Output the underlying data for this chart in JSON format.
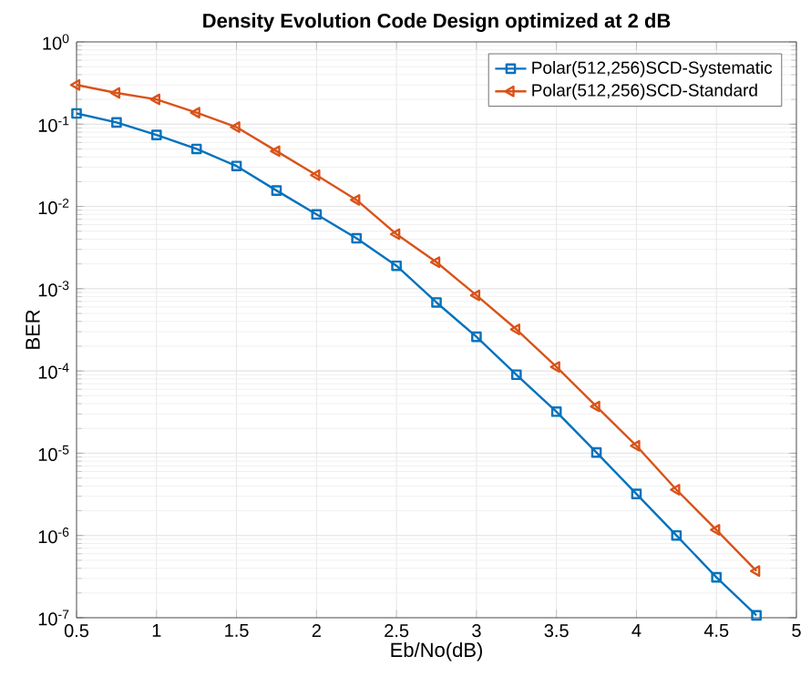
{
  "chart_data": {
    "type": "line",
    "title": "Density Evolution Code Design optimized at 2 dB",
    "xlabel": "Eb/No(dB)",
    "ylabel": "BER",
    "x": [
      0.5,
      0.75,
      1,
      1.25,
      1.5,
      1.75,
      2,
      2.25,
      2.5,
      2.75,
      3,
      3.25,
      3.5,
      3.75,
      4,
      4.25,
      4.5,
      4.75
    ],
    "series": [
      {
        "name": "Polar(512,256)SCD-Systematic",
        "color": "#0072bd",
        "marker": "square",
        "values": [
          0.135,
          0.105,
          0.074,
          0.05,
          0.031,
          0.0156,
          0.008,
          0.0041,
          0.0019,
          0.00068,
          0.00026,
          9e-05,
          3.2e-05,
          1.02e-05,
          3.2e-06,
          1e-06,
          3.1e-07,
          1.07e-07
        ]
      },
      {
        "name": "Polar(512,256)SCD-Standard",
        "color": "#d95319",
        "marker": "triangle",
        "values": [
          0.3,
          0.24,
          0.2,
          0.138,
          0.092,
          0.047,
          0.024,
          0.012,
          0.0046,
          0.0021,
          0.00083,
          0.00032,
          0.000112,
          3.7e-05,
          1.23e-05,
          3.6e-06,
          1.17e-06,
          3.7e-07
        ]
      }
    ],
    "xlim": [
      0.5,
      5
    ],
    "ylim": [
      1e-07,
      1
    ],
    "xticks": [
      0.5,
      1,
      1.5,
      2,
      2.5,
      3,
      3.5,
      4,
      4.5,
      5
    ],
    "yticks": [
      {
        "value": 1e-07,
        "label": "10$^{-7}$"
      },
      {
        "value": 1e-06,
        "label": "10$^{-6}$"
      },
      {
        "value": 1e-05,
        "label": "10$^{-5}$"
      },
      {
        "value": 0.0001,
        "label": "10$^{-4}$"
      },
      {
        "value": 0.001,
        "label": "10$^{-3}$"
      },
      {
        "value": 0.01,
        "label": "10$^{-2}$"
      },
      {
        "value": 0.1,
        "label": "10$^{-1}$"
      },
      {
        "value": 1,
        "label": "10$^{0}$"
      }
    ],
    "log": "y",
    "grid": true,
    "legend": "top right",
    "line_style": "solid"
  }
}
